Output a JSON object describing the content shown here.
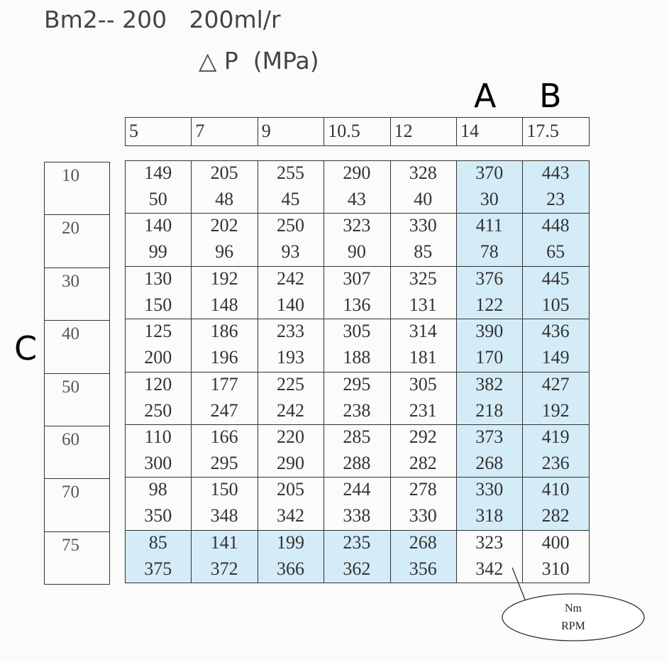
{
  "header": {
    "title": "Bm2-- 200   200ml/r",
    "subtitle": "△ P  (MPa)"
  },
  "labels": {
    "a": "A",
    "b": "B",
    "c": "C"
  },
  "table": {
    "columns": [
      5,
      7,
      9,
      10.5,
      12,
      14,
      17.5
    ],
    "rows": [
      {
        "label": 10,
        "cells": [
          [
            149,
            50
          ],
          [
            205,
            48
          ],
          [
            255,
            45
          ],
          [
            290,
            43
          ],
          [
            328,
            40
          ],
          [
            370,
            30
          ],
          [
            443,
            23
          ]
        ]
      },
      {
        "label": 20,
        "cells": [
          [
            140,
            99
          ],
          [
            202,
            96
          ],
          [
            250,
            93
          ],
          [
            323,
            90
          ],
          [
            330,
            85
          ],
          [
            411,
            78
          ],
          [
            448,
            65
          ]
        ]
      },
      {
        "label": 30,
        "cells": [
          [
            130,
            150
          ],
          [
            192,
            148
          ],
          [
            242,
            140
          ],
          [
            307,
            136
          ],
          [
            325,
            131
          ],
          [
            376,
            122
          ],
          [
            445,
            105
          ]
        ]
      },
      {
        "label": 40,
        "cells": [
          [
            125,
            200
          ],
          [
            186,
            196
          ],
          [
            233,
            193
          ],
          [
            305,
            188
          ],
          [
            314,
            181
          ],
          [
            390,
            170
          ],
          [
            436,
            149
          ]
        ]
      },
      {
        "label": 50,
        "cells": [
          [
            120,
            250
          ],
          [
            177,
            247
          ],
          [
            225,
            242
          ],
          [
            295,
            238
          ],
          [
            305,
            231
          ],
          [
            382,
            218
          ],
          [
            427,
            192
          ]
        ]
      },
      {
        "label": 60,
        "cells": [
          [
            110,
            300
          ],
          [
            166,
            295
          ],
          [
            220,
            290
          ],
          [
            285,
            288
          ],
          [
            292,
            282
          ],
          [
            373,
            268
          ],
          [
            419,
            236
          ]
        ]
      },
      {
        "label": 70,
        "cells": [
          [
            98,
            350
          ],
          [
            150,
            348
          ],
          [
            205,
            342
          ],
          [
            244,
            338
          ],
          [
            278,
            330
          ],
          [
            330,
            318
          ],
          [
            410,
            282
          ]
        ]
      },
      {
        "label": 75,
        "cells": [
          [
            85,
            375
          ],
          [
            141,
            372
          ],
          [
            199,
            366
          ],
          [
            235,
            362
          ],
          [
            268,
            356
          ],
          [
            323,
            342
          ],
          [
            400,
            310
          ]
        ]
      }
    ]
  },
  "callout": [
    "Nm",
    "RPM"
  ]
}
